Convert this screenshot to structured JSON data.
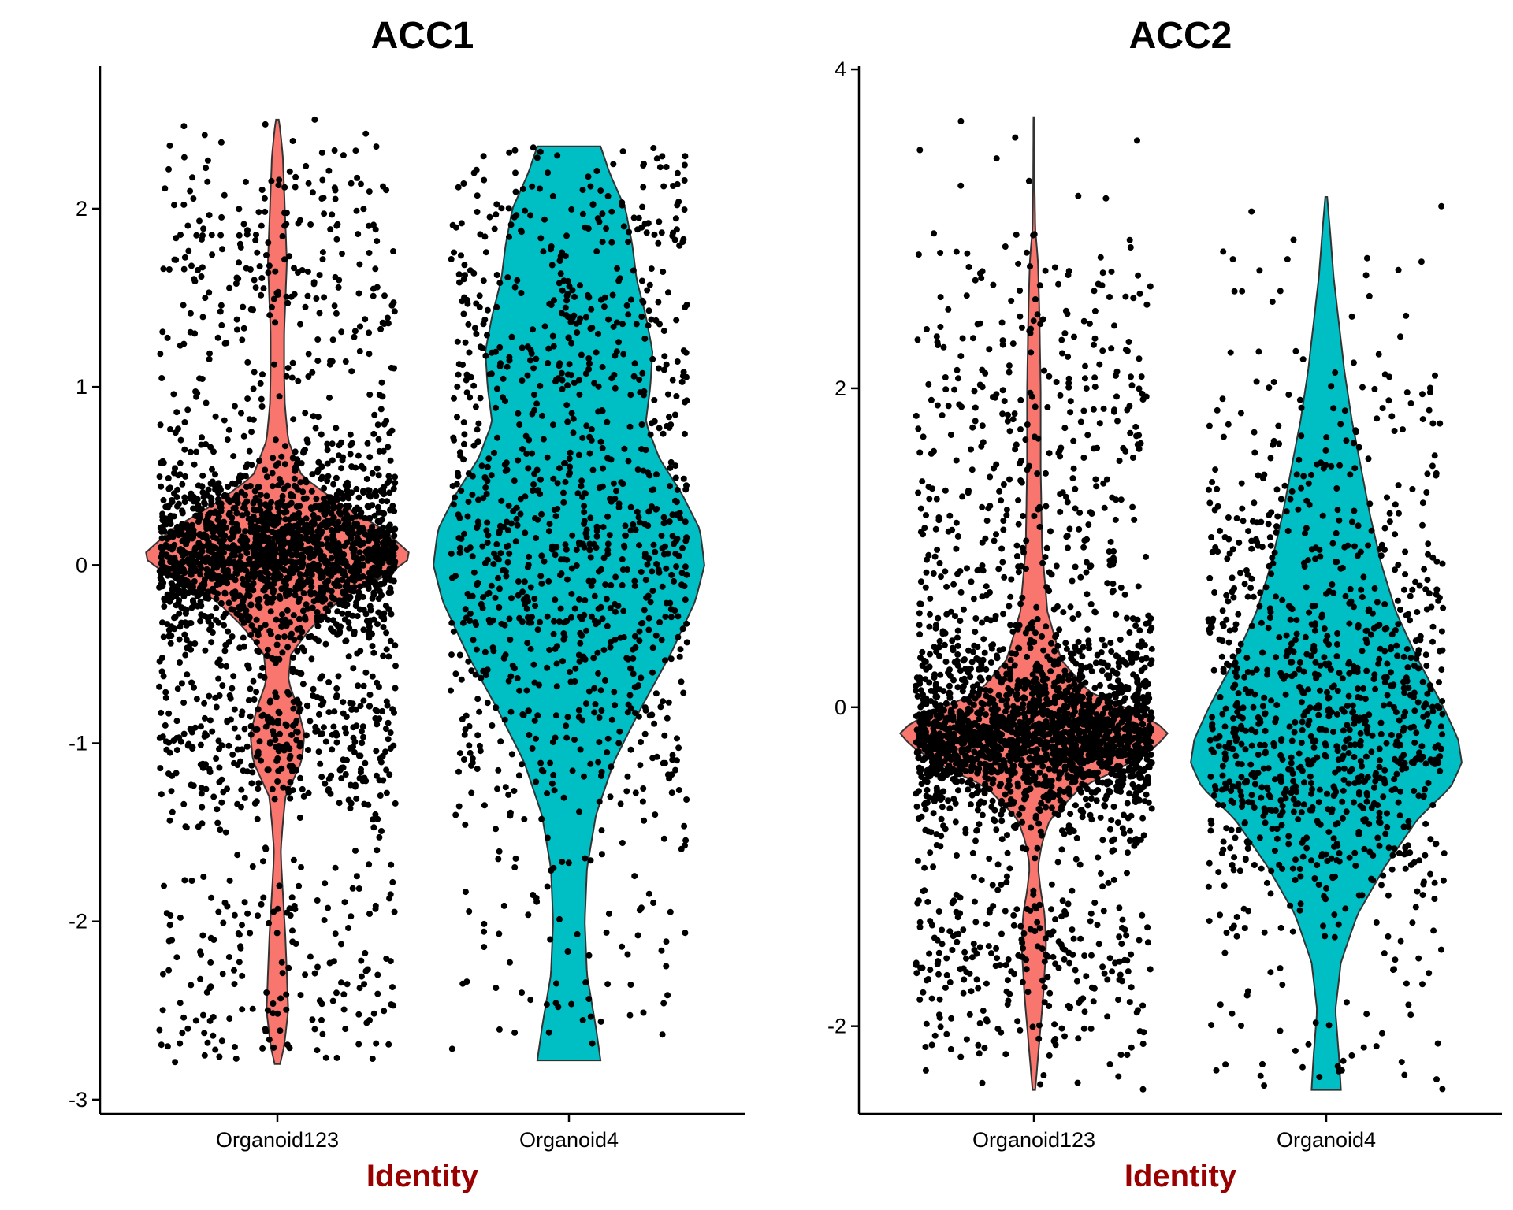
{
  "chart_data": [
    {
      "type": "violin",
      "title": "ACC1",
      "xlabel": "Identity",
      "ylabel": "",
      "ylim": [
        -3.08,
        2.8
      ],
      "yticks": [
        -3,
        -2,
        -1,
        0,
        1,
        2
      ],
      "categories": [
        "Organoid123",
        "Organoid4"
      ],
      "colors": [
        "#F8766D",
        "#00BFC4"
      ],
      "jitter": true,
      "series": [
        {
          "category": "Organoid123",
          "range": [
            -2.8,
            2.5
          ],
          "density": [
            [
              -2.8,
              0.02
            ],
            [
              -2.7,
              0.05
            ],
            [
              -2.5,
              0.08
            ],
            [
              -2.3,
              0.07
            ],
            [
              -2.1,
              0.06
            ],
            [
              -1.9,
              0.045
            ],
            [
              -1.7,
              0.03
            ],
            [
              -1.6,
              0.025
            ],
            [
              -1.45,
              0.04
            ],
            [
              -1.3,
              0.06
            ],
            [
              -1.1,
              0.18
            ],
            [
              -0.95,
              0.2
            ],
            [
              -0.8,
              0.15
            ],
            [
              -0.65,
              0.08
            ],
            [
              -0.5,
              0.1
            ],
            [
              -0.35,
              0.25
            ],
            [
              -0.2,
              0.45
            ],
            [
              -0.05,
              0.82
            ],
            [
              0.05,
              1.0
            ],
            [
              0.2,
              0.78
            ],
            [
              0.35,
              0.45
            ],
            [
              0.5,
              0.18
            ],
            [
              0.7,
              0.08
            ],
            [
              0.9,
              0.055
            ],
            [
              1.1,
              0.05
            ],
            [
              1.3,
              0.05
            ],
            [
              1.5,
              0.06
            ],
            [
              1.7,
              0.07
            ],
            [
              1.9,
              0.06
            ],
            [
              2.1,
              0.05
            ],
            [
              2.3,
              0.04
            ],
            [
              2.45,
              0.02
            ],
            [
              2.5,
              0.01
            ]
          ]
        },
        {
          "category": "Organoid4",
          "range": [
            -2.78,
            2.35
          ],
          "density": [
            [
              -2.78,
              0.14
            ],
            [
              -2.6,
              0.12
            ],
            [
              -2.3,
              0.08
            ],
            [
              -2.0,
              0.07
            ],
            [
              -1.7,
              0.08
            ],
            [
              -1.4,
              0.12
            ],
            [
              -1.1,
              0.2
            ],
            [
              -0.8,
              0.32
            ],
            [
              -0.5,
              0.45
            ],
            [
              -0.2,
              0.56
            ],
            [
              0.0,
              0.6
            ],
            [
              0.2,
              0.58
            ],
            [
              0.4,
              0.5
            ],
            [
              0.6,
              0.4
            ],
            [
              0.8,
              0.34
            ],
            [
              1.0,
              0.36
            ],
            [
              1.2,
              0.37
            ],
            [
              1.4,
              0.34
            ],
            [
              1.6,
              0.3
            ],
            [
              1.8,
              0.28
            ],
            [
              2.0,
              0.25
            ],
            [
              2.2,
              0.18
            ],
            [
              2.35,
              0.14
            ]
          ]
        }
      ]
    },
    {
      "type": "violin",
      "title": "ACC2",
      "xlabel": "Identity",
      "ylabel": "",
      "ylim": [
        -2.55,
        4.02
      ],
      "yticks": [
        -2,
        0,
        2,
        4
      ],
      "categories": [
        "Organoid123",
        "Organoid4"
      ],
      "colors": [
        "#F8766D",
        "#00BFC4"
      ],
      "jitter": true,
      "series": [
        {
          "category": "Organoid123",
          "range": [
            -2.4,
            3.7
          ],
          "density": [
            [
              -2.4,
              0.01
            ],
            [
              -2.2,
              0.03
            ],
            [
              -2.0,
              0.05
            ],
            [
              -1.8,
              0.07
            ],
            [
              -1.5,
              0.09
            ],
            [
              -1.3,
              0.08
            ],
            [
              -1.15,
              0.05
            ],
            [
              -1.0,
              0.03
            ],
            [
              -0.85,
              0.06
            ],
            [
              -0.7,
              0.12
            ],
            [
              -0.5,
              0.35
            ],
            [
              -0.4,
              0.6
            ],
            [
              -0.25,
              0.9
            ],
            [
              -0.15,
              1.0
            ],
            [
              -0.05,
              0.8
            ],
            [
              0.1,
              0.4
            ],
            [
              0.3,
              0.2
            ],
            [
              0.6,
              0.1
            ],
            [
              1.0,
              0.06
            ],
            [
              1.5,
              0.05
            ],
            [
              2.0,
              0.05
            ],
            [
              2.5,
              0.04
            ],
            [
              2.8,
              0.03
            ],
            [
              3.0,
              0.01
            ],
            [
              3.3,
              0.005
            ],
            [
              3.7,
              0.003
            ]
          ]
        },
        {
          "category": "Organoid4",
          "range": [
            -2.4,
            3.2
          ],
          "density": [
            [
              -2.4,
              0.08
            ],
            [
              -2.2,
              0.07
            ],
            [
              -1.9,
              0.05
            ],
            [
              -1.6,
              0.08
            ],
            [
              -1.3,
              0.17
            ],
            [
              -1.0,
              0.32
            ],
            [
              -0.7,
              0.5
            ],
            [
              -0.5,
              0.68
            ],
            [
              -0.35,
              0.74
            ],
            [
              -0.2,
              0.72
            ],
            [
              0.0,
              0.64
            ],
            [
              0.3,
              0.5
            ],
            [
              0.6,
              0.38
            ],
            [
              0.9,
              0.3
            ],
            [
              1.2,
              0.24
            ],
            [
              1.5,
              0.19
            ],
            [
              1.8,
              0.14
            ],
            [
              2.1,
              0.1
            ],
            [
              2.4,
              0.07
            ],
            [
              2.7,
              0.04
            ],
            [
              3.0,
              0.02
            ],
            [
              3.2,
              0.005
            ]
          ]
        }
      ]
    }
  ]
}
